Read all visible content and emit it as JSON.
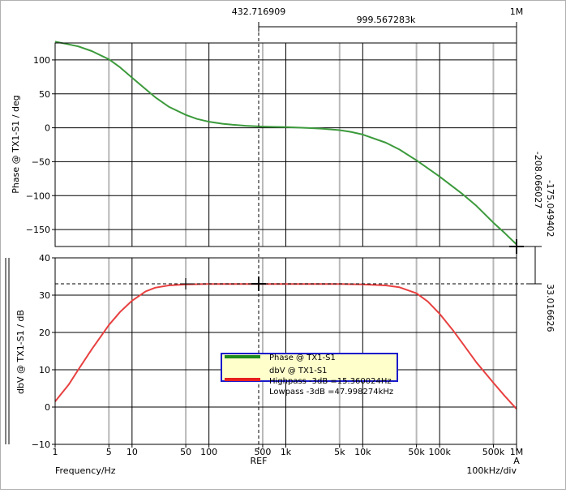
{
  "chart_data": [
    {
      "type": "line",
      "panel": "top",
      "ylabel": "Phase @ TX1-S1 / deg",
      "ylim": [
        -175,
        125
      ],
      "yticks": [
        100,
        50,
        0,
        -50,
        -100,
        -150
      ],
      "x_scale": "log",
      "xlim": [
        1,
        1000000
      ],
      "grid": true,
      "series": [
        {
          "name": "Phase @ TX1-S1",
          "color": "#3c9a3c",
          "x": [
            1,
            2,
            3,
            5,
            7,
            10,
            15,
            20,
            30,
            50,
            70,
            100,
            150,
            200,
            300,
            500,
            700,
            1000,
            2000,
            3000,
            5000,
            7000,
            10000,
            20000,
            30000,
            50000,
            100000,
            200000,
            300000,
            500000,
            700000,
            1000000
          ],
          "y": [
            127,
            120,
            113,
            101,
            89,
            74,
            57,
            45,
            31,
            19,
            13,
            9,
            6,
            4.5,
            3,
            1.8,
            1.3,
            0.9,
            -0.4,
            -1.5,
            -3.5,
            -6,
            -10,
            -22,
            -32,
            -48,
            -72,
            -98,
            -115,
            -140,
            -155,
            -172
          ]
        }
      ],
      "cursor_readouts": [
        "-175.049402",
        "-208.066027"
      ]
    },
    {
      "type": "line",
      "panel": "bottom",
      "ylabel": "dbV @ TX1-S1 / dB",
      "ylim": [
        -10,
        40
      ],
      "yticks": [
        40,
        30,
        20,
        10,
        0,
        -10
      ],
      "x_scale": "log",
      "xlim": [
        1,
        1000000
      ],
      "xticks": [
        "1",
        "5",
        "10",
        "50",
        "100",
        "500",
        "1k",
        "5k",
        "10k",
        "50k",
        "100k",
        "500k",
        "1M"
      ],
      "xlabel": "Frequency/Hz",
      "grid": true,
      "series": [
        {
          "name": "dbV @ TX1-S1",
          "color": "#e84040",
          "x": [
            1,
            1.5,
            2,
            3,
            5,
            7,
            10,
            15,
            20,
            30,
            50,
            100,
            200,
            500,
            1000,
            5000,
            10000,
            20000,
            30000,
            50000,
            70000,
            100000,
            150000,
            200000,
            300000,
            500000,
            700000,
            1000000
          ],
          "y": [
            1.5,
            6,
            10,
            15.5,
            22,
            25.5,
            28.5,
            31,
            32,
            32.6,
            32.9,
            33,
            33,
            33,
            33,
            33,
            32.9,
            32.6,
            32.1,
            30.5,
            28.3,
            25,
            20.5,
            17,
            12,
            6.5,
            3,
            -0.5
          ]
        }
      ],
      "cursor_readouts": [
        "33.016626"
      ]
    }
  ],
  "cursor": {
    "ref_value": "432.716909",
    "delta_value": "999.567283k",
    "end_value": "1M",
    "ref_label": "REF",
    "a_label": "A"
  },
  "x_div_label": "100kHz/div",
  "legend": {
    "entries": [
      "Phase @ TX1-S1",
      "dbV @ TX1-S1"
    ],
    "highpass": "Highpass -3dB =15.360024Hz",
    "lowpass": "Lowpass -3dB =47.998274kHz"
  }
}
